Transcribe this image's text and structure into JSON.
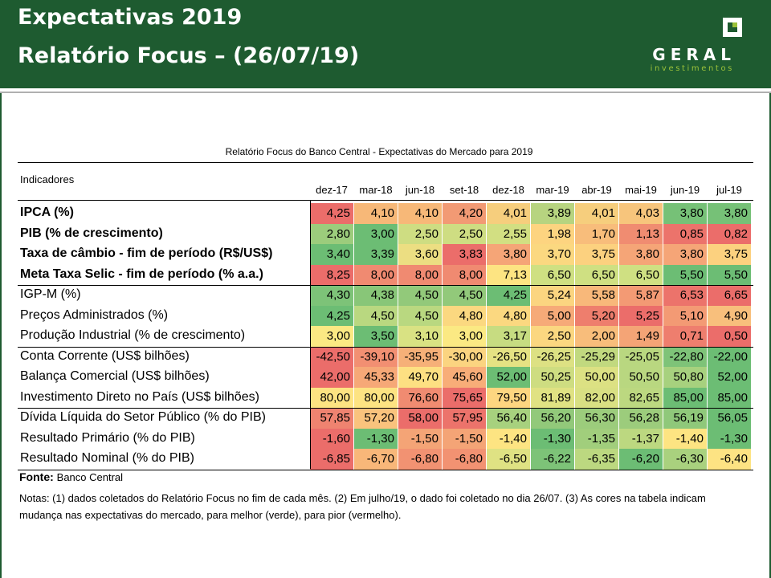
{
  "header": {
    "title_line1": "Expectativas 2019",
    "title_line2": "Relatório Focus – (26/07/19)",
    "logo_name": "GERAL",
    "logo_sub": "investimentos",
    "bg_color": "#1e5b30"
  },
  "table": {
    "title": "Relatório Focus do Banco Central - Expectativas do Mercado para 2019",
    "indicators_header": "Indicadores",
    "columns": [
      "dez-17",
      "mar-18",
      "jun-18",
      "set-18",
      "dez-18",
      "mar-19",
      "abr-19",
      "mai-19",
      "jun-19",
      "jul-19"
    ],
    "rows": [
      {
        "label": "IPCA (%)",
        "bold": true,
        "values": [
          "4,25",
          "4,10",
          "4,10",
          "4,20",
          "4,01",
          "3,89",
          "4,01",
          "4,03",
          "3,80",
          "3,80"
        ],
        "colors": [
          "#eb6d6a",
          "#f7b878",
          "#f7b878",
          "#f29a74",
          "#f6ce7d",
          "#b7d480",
          "#f6ce7d",
          "#f7c57c",
          "#76c177",
          "#76c177"
        ]
      },
      {
        "label": "PIB (% de crescimento)",
        "bold": true,
        "values": [
          "2,80",
          "3,00",
          "2,50",
          "2,50",
          "2,55",
          "1,98",
          "1,70",
          "1,13",
          "0,85",
          "0,82"
        ],
        "colors": [
          "#9ccc7c",
          "#6cbd74",
          "#cedd82",
          "#cedd82",
          "#d2df82",
          "#fdd480",
          "#f8bd7b",
          "#f08c71",
          "#ec736b",
          "#eb6d6a"
        ]
      },
      {
        "label": "Taxa de câmbio - fim de período (R$/US$)",
        "bold": true,
        "values": [
          "3,40",
          "3,39",
          "3,60",
          "3,83",
          "3,80",
          "3,70",
          "3,75",
          "3,80",
          "3,80",
          "3,75"
        ],
        "colors": [
          "#6cbd74",
          "#6cbd74",
          "#ecde82",
          "#eb6d6a",
          "#f5a577",
          "#fbd880",
          "#fcd17f",
          "#f5a577",
          "#f5a577",
          "#fcd17f"
        ]
      },
      {
        "label": "Meta Taxa Selic - fim de período (% a.a.)",
        "bold": true,
        "values": [
          "8,25",
          "8,00",
          "8,00",
          "8,00",
          "7,13",
          "6,50",
          "6,50",
          "6,50",
          "5,50",
          "5,50"
        ],
        "colors": [
          "#eb6d6a",
          "#f08a71",
          "#f08a71",
          "#f08a71",
          "#fde482",
          "#cfe082",
          "#cfe082",
          "#cfe082",
          "#6cbd74",
          "#6cbd74"
        ]
      },
      {
        "label": "IGP-M (%)",
        "bold": false,
        "values": [
          "4,30",
          "4,38",
          "4,50",
          "4,50",
          "4,25",
          "5,24",
          "5,58",
          "5,87",
          "6,53",
          "6,65"
        ],
        "colors": [
          "#7dc378",
          "#88c678",
          "#92c97a",
          "#92c97a",
          "#6cbd74",
          "#fbd580",
          "#f8b87a",
          "#f39a74",
          "#ec736b",
          "#eb6d6a"
        ]
      },
      {
        "label": "Preços Administrados (%)",
        "bold": false,
        "values": [
          "4,25",
          "4,50",
          "4,50",
          "4,80",
          "4,80",
          "5,00",
          "5,20",
          "5,25",
          "5,10",
          "4,90"
        ],
        "colors": [
          "#6cbd74",
          "#b9d880",
          "#b9d880",
          "#fbd880",
          "#fbd880",
          "#f6aa78",
          "#ee7e6d",
          "#eb6d6a",
          "#f39a74",
          "#f8bf7c"
        ]
      },
      {
        "label": "Produção Industrial (% de crescimento)",
        "bold": false,
        "values": [
          "3,00",
          "3,50",
          "3,10",
          "3,00",
          "3,17",
          "2,50",
          "2,00",
          "1,49",
          "0,71",
          "0,50"
        ],
        "colors": [
          "#fbe983",
          "#6cbd74",
          "#d9e283",
          "#fbe983",
          "#c7dc81",
          "#fbd780",
          "#f8bd7b",
          "#f4a476",
          "#ee7e6e",
          "#eb6d6a"
        ]
      },
      {
        "label": "Conta Corrente (US$ bilhões)",
        "bold": false,
        "values": [
          "-42,50",
          "-39,10",
          "-35,95",
          "-30,00",
          "-26,50",
          "-26,25",
          "-25,29",
          "-25,05",
          "-22,80",
          "-22,00"
        ],
        "colors": [
          "#eb6d6a",
          "#f28f72",
          "#f6b078",
          "#fbd480",
          "#e5e283",
          "#dde183",
          "#c1d97f",
          "#b9d780",
          "#7ec378",
          "#6cbd74"
        ]
      },
      {
        "label": "Balança Comercial (US$ bilhões)",
        "bold": false,
        "values": [
          "42,00",
          "45,33",
          "49,70",
          "45,60",
          "52,00",
          "50,25",
          "50,00",
          "50,50",
          "50,80",
          "52,00"
        ],
        "colors": [
          "#eb6d6a",
          "#f6a877",
          "#fde082",
          "#f8ad78",
          "#6cbd74",
          "#cedd81",
          "#dce183",
          "#b9d780",
          "#a7d17e",
          "#6cbd74"
        ]
      },
      {
        "label": "Investimento Direto no País (US$ bilhões)",
        "bold": false,
        "values": [
          "80,00",
          "80,00",
          "76,60",
          "75,65",
          "79,50",
          "81,89",
          "82,00",
          "82,65",
          "85,00",
          "85,00"
        ],
        "colors": [
          "#fde382",
          "#fde382",
          "#f08b71",
          "#eb6d6a",
          "#fdd680",
          "#e0e283",
          "#d9e083",
          "#bcd880",
          "#6cbd74",
          "#6cbd74"
        ]
      },
      {
        "label": "Dívida Líquida do Setor Público (% do PIB)",
        "bold": false,
        "values": [
          "57,85",
          "57,20",
          "58,00",
          "57,95",
          "56,40",
          "56,20",
          "56,30",
          "56,28",
          "56,19",
          "56,05"
        ],
        "colors": [
          "#ef8370",
          "#f9c37d",
          "#eb6d6a",
          "#ec736b",
          "#a7d17e",
          "#92c97a",
          "#9ccc7c",
          "#9ccc7c",
          "#8fc87a",
          "#6cbd74"
        ]
      },
      {
        "label": "Resultado Primário (% do PIB)",
        "bold": false,
        "values": [
          "-1,60",
          "-1,30",
          "-1,50",
          "-1,50",
          "-1,40",
          "-1,30",
          "-1,35",
          "-1,37",
          "-1,40",
          "-1,30"
        ],
        "colors": [
          "#eb6d6a",
          "#6cbd74",
          "#f4a476",
          "#f4a476",
          "#fde482",
          "#6cbd74",
          "#a1ce7c",
          "#bcd880",
          "#fde482",
          "#6cbd74"
        ]
      },
      {
        "label": "Resultado Nominal (% do PIB)",
        "bold": false,
        "values": [
          "-6,85",
          "-6,70",
          "-6,80",
          "-6,80",
          "-6,50",
          "-6,22",
          "-6,35",
          "-6,20",
          "-6,30",
          "-6,40"
        ],
        "colors": [
          "#eb6d6a",
          "#f8b779",
          "#f29272",
          "#f29272",
          "#dfe283",
          "#7dc378",
          "#bcd880",
          "#6cbd74",
          "#a9d17e",
          "#fde383"
        ]
      }
    ]
  },
  "footer": {
    "fonte_label": "Fonte:",
    "fonte_value": "Banco Central",
    "notes": "Notas: (1) dados coletados do Relatório Focus no fim de cada mês. (2) Em julho/19, o dado foi coletado no dia 26/07. (3) As cores na tabela indicam mudança nas expectativas do mercado, para melhor (verde), para pior (vermelho)."
  }
}
